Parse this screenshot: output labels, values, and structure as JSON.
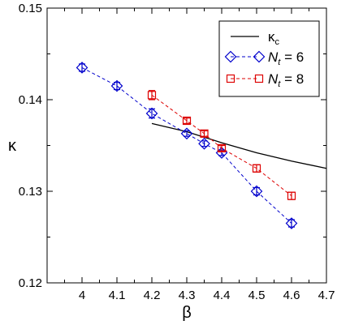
{
  "chart_data": {
    "type": "scatter",
    "xlabel": "β",
    "ylabel": "κ",
    "xlim": [
      3.9,
      4.7
    ],
    "ylim": [
      0.12,
      0.15
    ],
    "xticks": [
      4,
      4.1,
      4.2,
      4.3,
      4.4,
      4.5,
      4.6,
      4.7
    ],
    "xtick_labels": [
      "4",
      "4.1",
      "4.2",
      "4.3",
      "4.4",
      "4.5",
      "4.6",
      "4.7"
    ],
    "yticks": [
      0.12,
      0.13,
      0.14,
      0.15
    ],
    "ytick_labels": [
      "0.12",
      "0.13",
      "0.14",
      "0.15"
    ],
    "grid": false,
    "legend_position": "top-right",
    "curve": {
      "name_main": "κ",
      "name_sub": "c",
      "color": "#000000",
      "x": [
        4.2,
        4.3,
        4.4,
        4.5,
        4.6,
        4.7
      ],
      "y": [
        0.1374,
        0.1365,
        0.1353,
        0.1342,
        0.1333,
        0.1325
      ]
    },
    "series": [
      {
        "name_main": "N",
        "name_sub": "t",
        "name_rest": " = 6",
        "color": "#0000cc",
        "marker": "diamond",
        "x": [
          4.0,
          4.1,
          4.2,
          4.3,
          4.35,
          4.4,
          4.5,
          4.6
        ],
        "y": [
          0.1435,
          0.1415,
          0.1385,
          0.1363,
          0.1352,
          0.1342,
          0.13,
          0.1265
        ],
        "err": [
          0.0004,
          0.0004,
          0.0005,
          0.0003,
          0.0003,
          0.0003,
          0.0004,
          0.0004
        ]
      },
      {
        "name_main": "N",
        "name_sub": "t",
        "name_rest": " = 8",
        "color": "#dd0000",
        "marker": "square",
        "x": [
          4.2,
          4.3,
          4.35,
          4.4,
          4.5,
          4.6
        ],
        "y": [
          0.1405,
          0.1377,
          0.1363,
          0.1347,
          0.1325,
          0.1295
        ],
        "err": [
          0.0005,
          0.0003,
          0.0003,
          0.0003,
          0.0004,
          0.0004
        ]
      }
    ]
  }
}
